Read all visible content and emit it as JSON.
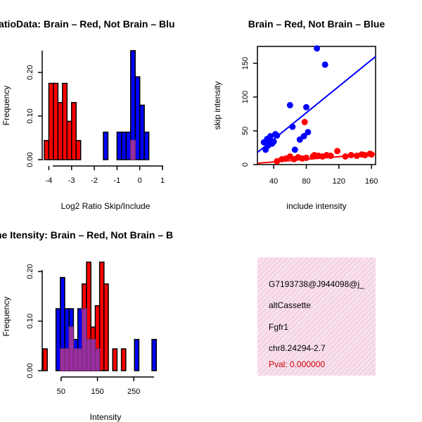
{
  "colors": {
    "red": "#ff0000",
    "blue": "#0000ff",
    "purple": "#9a2fa0",
    "overlap": "#7a2a7a"
  },
  "chart_data": [
    {
      "type": "bar",
      "subtype": "histogram",
      "title": "RatioData: Brain – Red, Not Brain – Blu",
      "xlabel": "Log2 Ratio Skip/Include",
      "ylabel": "Frequency",
      "xlim": [
        -4.2,
        1.0
      ],
      "ylim": [
        0,
        0.25
      ],
      "xticks": [
        "-4",
        "-3",
        "-2",
        "-1",
        "0",
        "1"
      ],
      "yticks": [
        "0.00",
        "0.10",
        "0.20"
      ],
      "bin_width": 0.2,
      "series": [
        {
          "name": "Brain",
          "color": "red",
          "bins": [
            {
              "x": -4.1,
              "y": 0.044
            },
            {
              "x": -3.9,
              "y": 0.175
            },
            {
              "x": -3.7,
              "y": 0.175
            },
            {
              "x": -3.5,
              "y": 0.131
            },
            {
              "x": -3.3,
              "y": 0.175
            },
            {
              "x": -3.1,
              "y": 0.088
            },
            {
              "x": -2.9,
              "y": 0.131
            },
            {
              "x": -2.7,
              "y": 0.044
            }
          ]
        },
        {
          "name": "Not Brain",
          "color": "blue",
          "bins": [
            {
              "x": -1.5,
              "y": 0.063
            },
            {
              "x": -0.9,
              "y": 0.063
            },
            {
              "x": -0.7,
              "y": 0.063
            },
            {
              "x": -0.5,
              "y": 0.063
            },
            {
              "x": -0.3,
              "y": 0.25
            },
            {
              "x": -0.1,
              "y": 0.19
            },
            {
              "x": 0.1,
              "y": 0.125
            },
            {
              "x": 0.3,
              "y": 0.063
            }
          ]
        },
        {
          "name": "Overlap",
          "color": "purple",
          "bins": [
            {
              "x": -0.3,
              "y": 0.044
            }
          ]
        }
      ]
    },
    {
      "type": "scatter",
      "title": "Brain – Red, Not Brain – Blue",
      "xlabel": "include intensity",
      "ylabel": "skip intensity",
      "xlim": [
        20,
        165
      ],
      "ylim": [
        0,
        175
      ],
      "xticks": [
        "40",
        "80",
        "120",
        "160"
      ],
      "yticks": [
        "0",
        "50",
        "100",
        "150"
      ],
      "series": [
        {
          "name": "Not Brain",
          "color": "blue",
          "points": [
            [
              28,
              33
            ],
            [
              30,
              22
            ],
            [
              32,
              38
            ],
            [
              33,
              28
            ],
            [
              35,
              35
            ],
            [
              36,
              42
            ],
            [
              38,
              31
            ],
            [
              40,
              34
            ],
            [
              42,
              45
            ],
            [
              44,
              43
            ],
            [
              60,
              88
            ],
            [
              63,
              56
            ],
            [
              66,
              22
            ],
            [
              72,
              37
            ],
            [
              77,
              42
            ],
            [
              80,
              85
            ],
            [
              82,
              48
            ],
            [
              93,
              172
            ],
            [
              103,
              148
            ]
          ],
          "fit": {
            "x0": 20,
            "y0": 18,
            "x1": 165,
            "y1": 160
          }
        },
        {
          "name": "Brain",
          "color": "red",
          "points": [
            [
              44,
              5
            ],
            [
              50,
              8
            ],
            [
              55,
              9
            ],
            [
              60,
              12
            ],
            [
              65,
              8
            ],
            [
              70,
              11
            ],
            [
              75,
              9
            ],
            [
              78,
              63
            ],
            [
              80,
              10
            ],
            [
              88,
              12
            ],
            [
              90,
              14
            ],
            [
              95,
              13
            ],
            [
              100,
              12
            ],
            [
              105,
              14
            ],
            [
              110,
              13
            ],
            [
              118,
              20
            ],
            [
              128,
              12
            ],
            [
              135,
              14
            ],
            [
              142,
              13
            ],
            [
              148,
              15
            ],
            [
              152,
              14
            ],
            [
              158,
              16
            ],
            [
              160,
              15
            ]
          ],
          "fit": {
            "x0": 20,
            "y0": 2,
            "x1": 165,
            "y1": 16
          }
        }
      ]
    },
    {
      "type": "bar",
      "subtype": "histogram",
      "title": "ne Itensity: Brain – Red, Not Brain – B",
      "xlabel": "Intensity",
      "ylabel": "Frequency",
      "xlim": [
        0,
        325
      ],
      "ylim": [
        0,
        0.22
      ],
      "xticks": [
        "50",
        "150",
        "250"
      ],
      "yticks": [
        "0.00",
        "0.10",
        "0.20"
      ],
      "bin_width": 12,
      "series": [
        {
          "name": "Brain",
          "color": "red",
          "bins": [
            {
              "x": 6,
              "y": 0.044
            },
            {
              "x": 54,
              "y": 0.044
            },
            {
              "x": 66,
              "y": 0.044
            },
            {
              "x": 78,
              "y": 0.088
            },
            {
              "x": 90,
              "y": 0.044
            },
            {
              "x": 102,
              "y": 0.044
            },
            {
              "x": 114,
              "y": 0.175
            },
            {
              "x": 126,
              "y": 0.219
            },
            {
              "x": 138,
              "y": 0.088
            },
            {
              "x": 150,
              "y": 0.131
            },
            {
              "x": 162,
              "y": 0.219
            },
            {
              "x": 174,
              "y": 0.175
            },
            {
              "x": 198,
              "y": 0.044
            },
            {
              "x": 222,
              "y": 0.044
            }
          ]
        },
        {
          "name": "Not Brain",
          "color": "blue",
          "bins": [
            {
              "x": 42,
              "y": 0.125
            },
            {
              "x": 54,
              "y": 0.188
            },
            {
              "x": 66,
              "y": 0.125
            },
            {
              "x": 78,
              "y": 0.125
            },
            {
              "x": 90,
              "y": 0.063
            },
            {
              "x": 102,
              "y": 0.125
            },
            {
              "x": 114,
              "y": 0.125
            },
            {
              "x": 126,
              "y": 0.063
            },
            {
              "x": 138,
              "y": 0.063
            },
            {
              "x": 150,
              "y": 0.044
            },
            {
              "x": 258,
              "y": 0.063
            },
            {
              "x": 306,
              "y": 0.063
            }
          ]
        },
        {
          "name": "Overlap",
          "color": "purple",
          "bins": [
            {
              "x": 54,
              "y": 0.044
            },
            {
              "x": 66,
              "y": 0.044
            },
            {
              "x": 78,
              "y": 0.088
            },
            {
              "x": 90,
              "y": 0.044
            },
            {
              "x": 102,
              "y": 0.044
            },
            {
              "x": 114,
              "y": 0.125
            },
            {
              "x": 126,
              "y": 0.063
            },
            {
              "x": 138,
              "y": 0.063
            },
            {
              "x": 150,
              "y": 0.044
            }
          ]
        }
      ]
    }
  ],
  "info": {
    "event_id": "G7193738@J944098@j_",
    "event_type": "altCassette",
    "gene": "Fgfr1",
    "location": "chr8.24294-2.7",
    "pval": "Pval: 0.000000"
  }
}
